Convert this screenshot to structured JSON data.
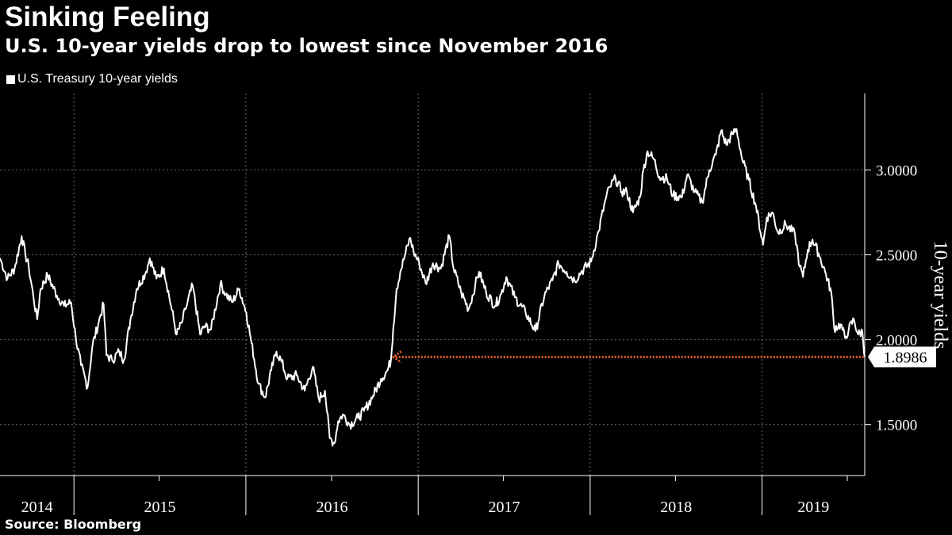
{
  "title": "Sinking Feeling",
  "subtitle": "U.S. 10-year yields drop to lowest since November 2016",
  "source": "Source: Bloomberg",
  "colors": {
    "background": "#000000",
    "line": "#ffffff",
    "grid": "#6a6a6a",
    "arrow": "#e8602c",
    "text": "#ffffff"
  },
  "chart_data": {
    "type": "line",
    "title": "Sinking Feeling",
    "subtitle": "U.S. 10-year yields drop to lowest since November 2016",
    "ylabel": "10-year yields",
    "xlabel": "",
    "y_axis_position": "right",
    "ylim": [
      1.2,
      3.45
    ],
    "xlim": [
      "2014-07-28",
      "2019-08-07"
    ],
    "ytick_values": [
      1.5,
      2.0,
      2.5,
      3.0
    ],
    "yticks": [
      "1.5000",
      "2.0000",
      "2.5000",
      "3.0000"
    ],
    "xticks": [
      "2014",
      "2015",
      "2016",
      "2017",
      "2018",
      "2019"
    ],
    "grid": true,
    "legend": "top-left",
    "last_value_label": "1.8986",
    "reference_level": {
      "value": 1.8986,
      "from": "2016-11-09",
      "to": "2019-08-07"
    },
    "series": [
      {
        "name": "U.S. Treasury 10-year yields",
        "x": [
          "2014-07-28",
          "2014-08-13",
          "2014-08-28",
          "2014-09-12",
          "2014-09-20",
          "2014-09-27",
          "2014-10-07",
          "2014-10-15",
          "2014-10-22",
          "2014-11-06",
          "2014-11-26",
          "2014-12-11",
          "2014-12-26",
          "2015-01-05",
          "2015-01-16",
          "2015-01-30",
          "2015-02-09",
          "2015-02-23",
          "2015-03-05",
          "2015-03-11",
          "2015-03-23",
          "2015-04-07",
          "2015-04-17",
          "2015-05-01",
          "2015-05-14",
          "2015-06-03",
          "2015-06-11",
          "2015-06-25",
          "2015-07-11",
          "2015-07-26",
          "2015-08-07",
          "2015-08-18",
          "2015-08-26",
          "2015-09-10",
          "2015-09-26",
          "2015-10-05",
          "2015-10-19",
          "2015-11-08",
          "2015-11-19",
          "2015-12-03",
          "2015-12-18",
          "2016-01-02",
          "2016-01-13",
          "2016-01-28",
          "2016-02-11",
          "2016-02-24",
          "2016-03-06",
          "2016-03-17",
          "2016-03-29",
          "2016-04-18",
          "2016-05-05",
          "2016-05-22",
          "2016-06-04",
          "2016-06-17",
          "2016-06-27",
          "2016-07-07",
          "2016-07-15",
          "2016-07-25",
          "2016-08-09",
          "2016-08-26",
          "2016-09-08",
          "2016-09-27",
          "2016-10-14",
          "2016-10-28",
          "2016-11-04",
          "2016-11-09",
          "2016-11-16",
          "2016-11-24",
          "2016-12-05",
          "2016-12-15",
          "2016-12-22",
          "2017-01-03",
          "2017-01-17",
          "2017-02-01",
          "2017-02-18",
          "2017-03-08",
          "2017-03-17",
          "2017-04-02",
          "2017-04-18",
          "2017-05-02",
          "2017-05-10",
          "2017-05-25",
          "2017-06-13",
          "2017-06-26",
          "2017-07-07",
          "2017-07-25",
          "2017-08-17",
          "2017-09-07",
          "2017-09-26",
          "2017-10-13",
          "2017-10-26",
          "2017-11-12",
          "2017-11-29",
          "2017-12-13",
          "2018-01-03",
          "2018-01-19",
          "2018-02-04",
          "2018-02-12",
          "2018-02-24",
          "2018-03-09",
          "2018-03-20",
          "2018-04-02",
          "2018-04-17",
          "2018-04-24",
          "2018-05-03",
          "2018-05-17",
          "2018-05-28",
          "2018-06-13",
          "2018-06-26",
          "2018-07-15",
          "2018-07-26",
          "2018-08-11",
          "2018-08-27",
          "2018-09-11",
          "2018-09-25",
          "2018-10-06",
          "2018-10-17",
          "2018-10-30",
          "2018-11-08",
          "2018-11-20",
          "2018-12-04",
          "2018-12-19",
          "2019-01-03",
          "2019-01-11",
          "2019-01-23",
          "2019-02-04",
          "2019-02-20",
          "2019-03-12",
          "2019-03-22",
          "2019-03-29",
          "2019-04-08",
          "2019-04-18",
          "2019-05-01",
          "2019-05-15",
          "2019-05-28",
          "2019-06-03",
          "2019-06-17",
          "2019-06-26",
          "2019-07-04",
          "2019-07-15",
          "2019-07-24",
          "2019-08-02",
          "2019-08-07"
        ],
        "values": [
          2.48,
          2.36,
          2.42,
          2.61,
          2.5,
          2.43,
          2.25,
          2.12,
          2.3,
          2.38,
          2.26,
          2.2,
          2.22,
          2.01,
          1.85,
          1.72,
          1.96,
          2.11,
          2.21,
          1.91,
          1.88,
          1.93,
          1.88,
          2.12,
          2.3,
          2.4,
          2.48,
          2.36,
          2.42,
          2.2,
          2.03,
          2.1,
          2.18,
          2.32,
          2.03,
          2.08,
          2.06,
          2.33,
          2.27,
          2.22,
          2.3,
          2.16,
          1.98,
          1.74,
          1.66,
          1.82,
          1.93,
          1.87,
          1.77,
          1.79,
          1.7,
          1.84,
          1.65,
          1.7,
          1.42,
          1.39,
          1.52,
          1.56,
          1.5,
          1.54,
          1.58,
          1.67,
          1.77,
          1.82,
          1.88,
          2.07,
          2.3,
          2.4,
          2.51,
          2.6,
          2.52,
          2.45,
          2.33,
          2.45,
          2.42,
          2.61,
          2.42,
          2.28,
          2.18,
          2.32,
          2.4,
          2.28,
          2.2,
          2.27,
          2.37,
          2.25,
          2.16,
          2.05,
          2.26,
          2.35,
          2.45,
          2.4,
          2.35,
          2.4,
          2.46,
          2.64,
          2.84,
          2.9,
          2.95,
          2.87,
          2.87,
          2.75,
          2.84,
          3.0,
          3.11,
          3.06,
          2.96,
          2.95,
          2.85,
          2.84,
          2.97,
          2.87,
          2.81,
          3.0,
          3.09,
          3.23,
          3.15,
          3.21,
          3.24,
          3.06,
          2.94,
          2.79,
          2.56,
          2.72,
          2.75,
          2.63,
          2.68,
          2.62,
          2.43,
          2.37,
          2.53,
          2.59,
          2.51,
          2.4,
          2.28,
          2.07,
          2.09,
          2.01,
          2.06,
          2.12,
          2.03,
          2.05,
          1.9
        ]
      }
    ]
  }
}
